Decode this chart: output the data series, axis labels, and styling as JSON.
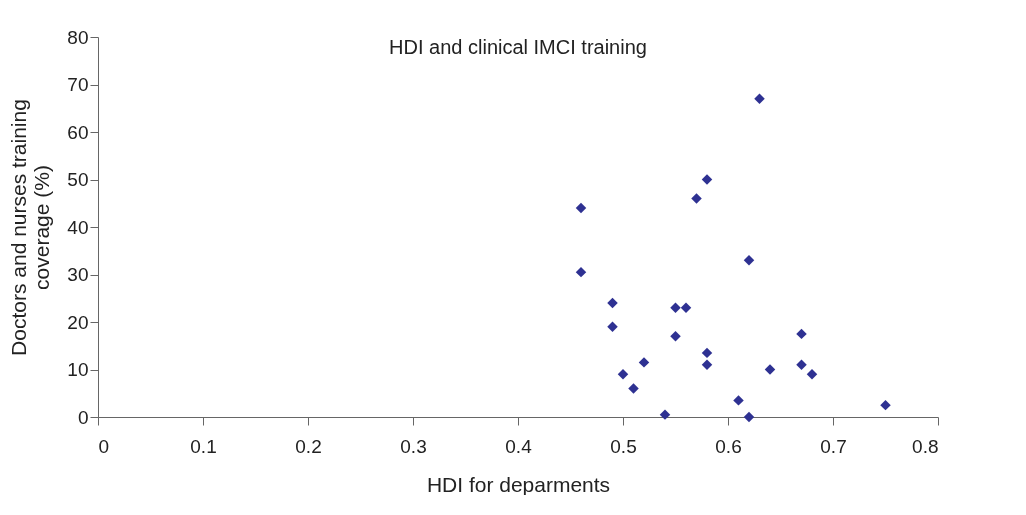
{
  "chart_data": {
    "type": "scatter",
    "title": "HDI and clinical IMCI training",
    "xlabel": "HDI for deparments",
    "ylabel": "Doctors and nurses training coverage (%)",
    "x": [
      0.46,
      0.46,
      0.49,
      0.49,
      0.5,
      0.51,
      0.52,
      0.54,
      0.55,
      0.56,
      0.55,
      0.57,
      0.58,
      0.58,
      0.58,
      0.61,
      0.62,
      0.62,
      0.63,
      0.64,
      0.67,
      0.67,
      0.68,
      0.75
    ],
    "series": [
      {
        "color": "#2e3192",
        "values": [
          44,
          30.5,
          24,
          19,
          9,
          6,
          11.5,
          0.5,
          23,
          23,
          17,
          46,
          50,
          13.5,
          11,
          3.5,
          0,
          33,
          67,
          10,
          17.5,
          11,
          9,
          2.5
        ]
      }
    ],
    "xlim": [
      0,
      0.8
    ],
    "ylim": [
      0,
      80
    ],
    "xticks": [
      0,
      0.1,
      0.2,
      0.3,
      0.4,
      0.5,
      0.6,
      0.7,
      0.8
    ],
    "yticks": [
      0,
      10,
      20,
      30,
      40,
      50,
      60,
      70,
      80
    ],
    "grid": false,
    "marker": "diamond"
  }
}
